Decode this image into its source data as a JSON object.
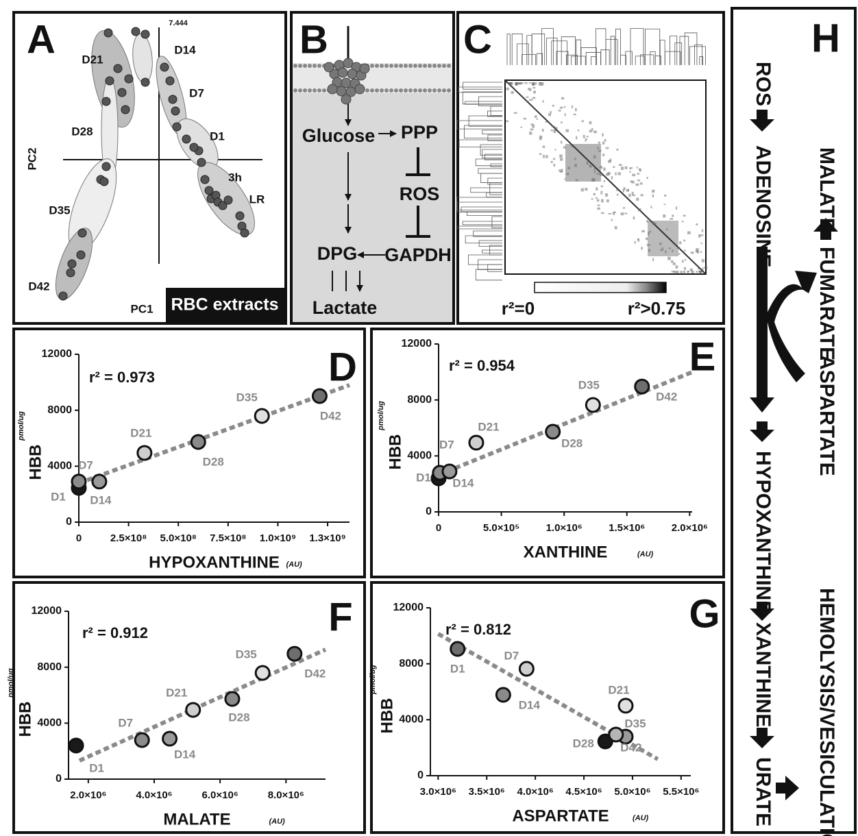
{
  "panels": {
    "A": {
      "letter": "A",
      "top_label": "7.444",
      "x_axis": "PC1",
      "y_axis": "PC2",
      "badge": "RBC extracts",
      "groups": [
        "D21",
        "D14",
        "D7",
        "D28",
        "D1",
        "3h",
        "LR",
        "D35",
        "D42"
      ]
    },
    "B": {
      "letter": "B",
      "nodes": [
        "Glucose",
        "PPP",
        "ROS",
        "DPG",
        "GAPDH",
        "Lactate"
      ]
    },
    "C": {
      "letter": "C",
      "scale_min": "r²=0",
      "scale_max": "r²>0.75"
    },
    "H": {
      "letter": "H",
      "left_path": [
        "ROS",
        "ADENOSINE",
        "HYPOXANTHINE",
        "XANTHINE",
        "URATE"
      ],
      "right_path": [
        "MALATE",
        "FUMARATE",
        "ASPARTATE"
      ],
      "outcome": "HEMOLYSIS/VESICULATION"
    }
  },
  "chart_data": [
    {
      "type": "scatter",
      "panel": "D",
      "annotation": "r² = 0.973",
      "y_label": "HBB",
      "y_unit": "pmol/ug",
      "x_label": "HYPOXANTHINE",
      "x_unit": "(AU)",
      "categories": [
        "D1",
        "D7",
        "D14",
        "D21",
        "D28",
        "D35",
        "D42"
      ],
      "x": [
        0,
        0,
        103000000,
        330000000,
        600000000,
        920000000,
        1210000000
      ],
      "values": [
        2450,
        2900,
        2900,
        4950,
        5730,
        7590,
        9010
      ],
      "colors": [
        "#1a1a1a",
        "#8c8c8c",
        "#9a9a9a",
        "#cfcfcf",
        "#8a8a8a",
        "#e0e0e0",
        "#6e6e6e"
      ],
      "trendline": {
        "x": [
          0,
          1360000000
        ],
        "values": [
          2790,
          9800
        ]
      },
      "xlim": [
        0,
        1360000000
      ],
      "ylim": [
        0,
        12000
      ],
      "xticks": [
        0,
        {
          "value": 250000000,
          "label": "2.5×10⁸"
        },
        {
          "value": 500000000,
          "label": "5.0×10⁸"
        },
        {
          "value": 750000000,
          "label": "7.5×10⁸"
        },
        {
          "value": 1000000000,
          "label": "1.0×10⁹"
        },
        {
          "value": 1250000000,
          "label": "1.3×10⁹"
        }
      ],
      "yticks": [
        0,
        4000,
        8000,
        12000
      ]
    },
    {
      "type": "scatter",
      "panel": "E",
      "annotation": "r² = 0.954",
      "y_label": "HBB",
      "y_unit": "pmol/ug",
      "x_label": "XANTHINE",
      "x_unit": "(AU)",
      "categories": [
        "D1",
        "D7",
        "D14",
        "D21",
        "D28",
        "D35",
        "D42"
      ],
      "x": [
        0,
        10000,
        87000,
        300000,
        910000,
        1230000,
        1620000
      ],
      "values": [
        2400,
        2790,
        2890,
        4950,
        5730,
        7640,
        8960
      ],
      "colors": [
        "#1a1a1a",
        "#8c8c8c",
        "#9a9a9a",
        "#cfcfcf",
        "#8a8a8a",
        "#e0e0e0",
        "#6e6e6e"
      ],
      "trendline": {
        "x": [
          0,
          2020000
        ],
        "values": [
          2650,
          9990
        ]
      },
      "xlim": [
        0,
        2020000
      ],
      "ylim": [
        0,
        12000
      ],
      "xticks": [
        0,
        {
          "value": 500000,
          "label": "5.0×10⁵"
        },
        {
          "value": 1000000,
          "label": "1.0×10⁶"
        },
        {
          "value": 1500000,
          "label": "1.5×10⁶"
        },
        {
          "value": 2000000,
          "label": "2.0×10⁶"
        }
      ],
      "yticks": [
        0,
        4000,
        8000,
        12000
      ]
    },
    {
      "type": "scatter",
      "panel": "F",
      "annotation": "r² = 0.912",
      "y_label": "HBB",
      "y_unit": "pmol/ug",
      "x_label": "MALATE",
      "x_unit": "(AU)",
      "categories": [
        "D1",
        "D7",
        "D14",
        "D21",
        "D28",
        "D35",
        "D42"
      ],
      "x": [
        1630000,
        3630000,
        4470000,
        5180000,
        6370000,
        7290000,
        8260000
      ],
      "values": [
        2400,
        2790,
        2890,
        4950,
        5730,
        7590,
        8960
      ],
      "colors": [
        "#1a1a1a",
        "#8c8c8c",
        "#9a9a9a",
        "#cfcfcf",
        "#8a8a8a",
        "#e0e0e0",
        "#6e6e6e"
      ],
      "trendline": {
        "x": [
          1730000,
          9200000
        ],
        "values": [
          1320,
          9260
        ]
      },
      "xlim": [
        1400000,
        9200000
      ],
      "ylim": [
        0,
        12000
      ],
      "xticks": [
        {
          "value": 2000000,
          "label": "2.0×10⁶"
        },
        {
          "value": 4000000,
          "label": "4.0×10⁶"
        },
        {
          "value": 6000000,
          "label": "6.0×10⁶"
        },
        {
          "value": 8000000,
          "label": "8.0×10⁶"
        }
      ],
      "yticks": [
        0,
        4000,
        8000,
        12000
      ]
    },
    {
      "type": "scatter",
      "panel": "G",
      "annotation": "r² = 0.812",
      "y_label": "HBB",
      "y_unit": "pmol/ug",
      "x_label": "ASPARTATE",
      "x_unit": "(AU)",
      "categories": [
        "D1",
        "D7",
        "D14",
        "D21",
        "D28",
        "D35",
        "D42"
      ],
      "x": [
        3200000,
        3910000,
        3670000,
        4930000,
        4720000,
        4930000,
        4830000
      ],
      "values": [
        9060,
        7640,
        5780,
        5000,
        2450,
        2790,
        2940
      ],
      "colors": [
        "#6e6e6e",
        "#cfcfcf",
        "#8a8a8a",
        "#e0e0e0",
        "#1a1a1a",
        "#9a9a9a",
        "#b5b5b5"
      ],
      "trendline": {
        "x": [
          3000000,
          5260000
        ],
        "values": [
          10140,
          1180
        ]
      },
      "xlim": [
        2920000,
        5600000
      ],
      "ylim": [
        0,
        12000
      ],
      "xticks": [
        {
          "value": 3000000,
          "label": "3.0×10⁶"
        },
        {
          "value": 3500000,
          "label": "3.5×10⁶"
        },
        {
          "value": 4000000,
          "label": "4.0×10⁶"
        },
        {
          "value": 4500000,
          "label": "4.5×10⁶"
        },
        {
          "value": 5000000,
          "label": "5.0×10⁶"
        },
        {
          "value": 5500000,
          "label": "5.5×10⁶"
        }
      ],
      "yticks": [
        0,
        4000,
        8000,
        12000
      ]
    }
  ]
}
